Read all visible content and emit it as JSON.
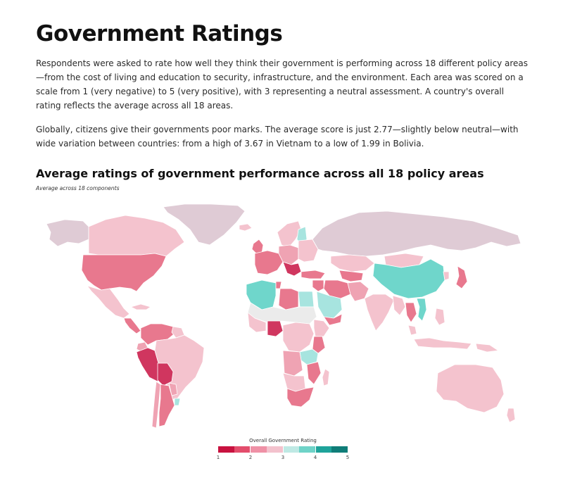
{
  "header": {
    "title": "Government Ratings",
    "paragraph1": "Respondents were asked to rate how well they think their government is performing across 18 different policy areas—from the cost of living and education to security, infrastructure, and the environment. Each area was scored on a scale from 1 (very negative) to 5 (very positive), with 3 representing a neutral assessment. A country's overall rating reflects the average across all 18 areas.",
    "paragraph2": "Globally, citizens give their governments poor marks. The average score is just 2.77—slightly below neutral—with wide variation between countries: from a high of 3.67 in Vietnam to a low of 1.99 in Bolivia."
  },
  "map": {
    "title": "Average ratings of government performance across all 18 policy areas",
    "subtitle": "Average across 18 components",
    "no_data_color": "#ebebeb",
    "colors": {
      "deep_red": "#d0365f",
      "red": "#e8788e",
      "pink": "#efa3b3",
      "light_pink": "#f4c3ce",
      "mauve": "#dfcbd5",
      "light_teal": "#a7e4df",
      "teal": "#6fd6cb"
    }
  },
  "legend": {
    "title": "Overall Government Rating",
    "ticks": [
      "1",
      "2",
      "3",
      "4",
      "5"
    ],
    "colors": [
      "#c8123f",
      "#e34d6c",
      "#ef91a6",
      "#f3c2cd",
      "#bfe9e4",
      "#6fd3c8",
      "#1ea39a",
      "#0f7d78"
    ]
  }
}
